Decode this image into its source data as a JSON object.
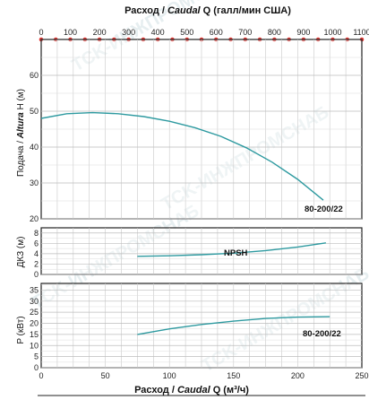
{
  "top_axis": {
    "title_prefix": "Расход / ",
    "title_italic": "Caudal",
    "title_suffix": " Q (галл/мин США)",
    "ticks": [
      "0",
      "100",
      "200",
      "300",
      "400",
      "500",
      "600",
      "700",
      "800",
      "900",
      "1000",
      "1100"
    ],
    "min": 0,
    "max": 1100,
    "marker_color": "#e53935",
    "marker_step": 50
  },
  "bottom_axis": {
    "title_prefix": "Расход / ",
    "title_italic": "Caudal",
    "title_suffix": " Q (м³/ч)",
    "ticks": [
      "0",
      "50",
      "100",
      "150",
      "200",
      "250"
    ],
    "min": 0,
    "max": 250
  },
  "watermark": {
    "text": "TCK-ИНЖПРОМСНАБ",
    "color": "#e6eef0"
  },
  "curve_color": "#2e9aa0",
  "chart_data": [
    {
      "type": "line",
      "id": "head",
      "ylabel_prefix": "Подача / ",
      "ylabel_italic": "Altura",
      "ylabel_suffix": " H (м)",
      "ylim": [
        20,
        70
      ],
      "yticks": [
        "20",
        "30",
        "40",
        "50",
        "60"
      ],
      "grid": true,
      "series": [
        {
          "name": "80-200/22",
          "x": [
            0,
            20,
            40,
            60,
            80,
            100,
            120,
            140,
            160,
            180,
            200,
            220
          ],
          "y": [
            48.0,
            49.3,
            49.6,
            49.3,
            48.5,
            47.2,
            45.4,
            43.0,
            39.8,
            35.8,
            31.0,
            25.2
          ]
        }
      ]
    },
    {
      "type": "line",
      "id": "npsh",
      "ylabel_prefix": "ДКЗ (м)",
      "ylabel_italic": "",
      "ylabel_suffix": "",
      "ylim": [
        0,
        9
      ],
      "yticks": [
        "0",
        "2",
        "4",
        "6",
        "8"
      ],
      "grid": true,
      "series": [
        {
          "name": "NPSH",
          "x": [
            75,
            100,
            125,
            150,
            175,
            200,
            222
          ],
          "y": [
            3.5,
            3.6,
            3.8,
            4.1,
            4.6,
            5.3,
            6.1
          ]
        }
      ]
    },
    {
      "type": "line",
      "id": "power",
      "ylabel_prefix": "P (кВт)",
      "ylabel_italic": "",
      "ylabel_suffix": "",
      "ylim": [
        0,
        38
      ],
      "yticks": [
        "0",
        "5",
        "10",
        "15",
        "20",
        "25",
        "30",
        "35"
      ],
      "grid": true,
      "series": [
        {
          "name": "80-200/22",
          "x": [
            75,
            100,
            125,
            150,
            175,
            200,
            225
          ],
          "y": [
            15.0,
            17.5,
            19.5,
            21.0,
            22.2,
            22.8,
            23.0
          ]
        }
      ]
    }
  ]
}
